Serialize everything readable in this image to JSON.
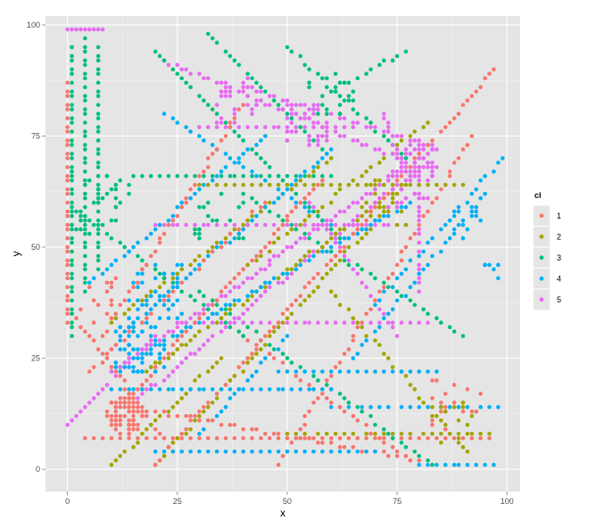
{
  "chart_data": {
    "type": "scatter",
    "title": "",
    "xlabel": "x",
    "ylabel": "y",
    "xlim": [
      -5,
      103
    ],
    "ylim": [
      -5,
      102
    ],
    "x_ticks": [
      0,
      25,
      50,
      75,
      100
    ],
    "y_ticks": [
      0,
      25,
      50,
      75,
      100
    ],
    "x_tick_labels": [
      "0",
      "25",
      "50",
      "75",
      "100"
    ],
    "y_tick_labels": [
      "0",
      "25",
      "50",
      "75",
      "100"
    ],
    "grid": true,
    "legend": {
      "title": "cl",
      "position": "right"
    },
    "panel_background": "#e5e5e5",
    "series": [
      {
        "name": "1",
        "color": "#f8766d",
        "segments": [
          {
            "from": [
              12,
              14
            ],
            "to": [
              58,
              65
            ],
            "step": 1.4
          },
          {
            "from": [
              8,
              30
            ],
            "to": [
              40,
              82
            ],
            "step": 1.6
          },
          {
            "from": [
              20,
              1
            ],
            "to": [
              97,
              90
            ],
            "step": 1.6
          },
          {
            "from": [
              0,
              87
            ],
            "to": [
              0,
              33
            ],
            "step": 1.6
          },
          {
            "from": [
              1,
              35
            ],
            "to": [
              24,
              4
            ],
            "step": 1.6
          },
          {
            "from": [
              15,
              14
            ],
            "to": [
              80,
              2
            ],
            "step": 1.7
          },
          {
            "from": [
              5,
              22
            ],
            "to": [
              45,
              60
            ],
            "step": 1.8
          },
          {
            "from": [
              48,
              1
            ],
            "to": [
              92,
              75
            ],
            "step": 1.8
          },
          {
            "from": [
              4,
              7
            ],
            "to": [
              96,
              7
            ],
            "step": 2.0
          },
          {
            "from": [
              40,
              30
            ],
            "to": [
              78,
              2
            ],
            "step": 1.8
          }
        ],
        "clusters": [
          {
            "cx": 13,
            "cy": 12,
            "n": 55,
            "spread": 4
          },
          {
            "cx": 8,
            "cy": 38,
            "n": 14,
            "spread": 5
          },
          {
            "cx": 88,
            "cy": 15,
            "n": 18,
            "spread": 6
          }
        ]
      },
      {
        "name": "2",
        "color": "#a3a500",
        "segments": [
          {
            "from": [
              18,
              22
            ],
            "to": [
              77,
              64
            ],
            "step": 1.4
          },
          {
            "from": [
              20,
              1
            ],
            "to": [
              72,
              58
            ],
            "step": 1.6
          },
          {
            "from": [
              10,
              33
            ],
            "to": [
              60,
              70
            ],
            "step": 1.7
          },
          {
            "from": [
              30,
              64
            ],
            "to": [
              90,
              64
            ],
            "step": 2.0
          },
          {
            "from": [
              10,
              1
            ],
            "to": [
              35,
              25
            ],
            "step": 1.6
          },
          {
            "from": [
              60,
              40
            ],
            "to": [
              91,
              4
            ],
            "step": 1.8
          },
          {
            "from": [
              50,
              8
            ],
            "to": [
              96,
              8
            ],
            "step": 2.2
          },
          {
            "from": [
              40,
              45
            ],
            "to": [
              82,
              78
            ],
            "step": 1.8
          }
        ],
        "clusters": [
          {
            "cx": 72,
            "cy": 60,
            "n": 25,
            "spread": 5
          },
          {
            "cx": 88,
            "cy": 10,
            "n": 14,
            "spread": 5
          }
        ]
      },
      {
        "name": "3",
        "color": "#00bf7d",
        "segments": [
          {
            "from": [
              1,
              95
            ],
            "to": [
              1,
              30
            ],
            "step": 1.6
          },
          {
            "from": [
              4,
              97
            ],
            "to": [
              4,
              40
            ],
            "step": 1.6
          },
          {
            "from": [
              7,
              95
            ],
            "to": [
              7,
              45
            ],
            "step": 1.6
          },
          {
            "from": [
              20,
              94
            ],
            "to": [
              62,
              52
            ],
            "step": 1.7
          },
          {
            "from": [
              32,
              98
            ],
            "to": [
              60,
              70
            ],
            "step": 1.7
          },
          {
            "from": [
              40,
              62
            ],
            "to": [
              90,
              30
            ],
            "step": 1.8
          },
          {
            "from": [
              2,
              58
            ],
            "to": [
              40,
              30
            ],
            "step": 1.7
          },
          {
            "from": [
              15,
              66
            ],
            "to": [
              60,
              66
            ],
            "step": 2.0
          },
          {
            "from": [
              30,
              40
            ],
            "to": [
              83,
              1
            ],
            "step": 1.8
          },
          {
            "from": [
              50,
              95
            ],
            "to": [
              77,
              70
            ],
            "step": 1.8
          },
          {
            "from": [
              58,
              84
            ],
            "to": [
              77,
              94
            ],
            "step": 1.8
          }
        ],
        "clusters": [
          {
            "cx": 7,
            "cy": 60,
            "n": 35,
            "spread": 7
          },
          {
            "cx": 60,
            "cy": 84,
            "n": 22,
            "spread": 5
          },
          {
            "cx": 35,
            "cy": 57,
            "n": 20,
            "spread": 6
          }
        ]
      },
      {
        "name": "4",
        "color": "#00b0f6",
        "segments": [
          {
            "from": [
              10,
              22
            ],
            "to": [
              78,
              60
            ],
            "step": 1.3
          },
          {
            "from": [
              12,
              30
            ],
            "to": [
              60,
              72
            ],
            "step": 1.5
          },
          {
            "from": [
              10,
              18
            ],
            "to": [
              60,
              18
            ],
            "step": 1.8
          },
          {
            "from": [
              5,
              42
            ],
            "to": [
              45,
              75
            ],
            "step": 1.6
          },
          {
            "from": [
              20,
              4
            ],
            "to": [
              70,
              4
            ],
            "step": 2.0
          },
          {
            "from": [
              48,
              22
            ],
            "to": [
              84,
              22
            ],
            "step": 2.0
          },
          {
            "from": [
              65,
              25
            ],
            "to": [
              95,
              62
            ],
            "step": 1.8
          },
          {
            "from": [
              70,
              37
            ],
            "to": [
              99,
              70
            ],
            "step": 1.8
          },
          {
            "from": [
              80,
              1
            ],
            "to": [
              97,
              1
            ],
            "step": 2.0
          },
          {
            "from": [
              60,
              14
            ],
            "to": [
              98,
              14
            ],
            "step": 2.2
          },
          {
            "from": [
              30,
              8
            ],
            "to": [
              50,
              30
            ],
            "step": 1.7
          },
          {
            "from": [
              22,
              80
            ],
            "to": [
              60,
              55
            ],
            "step": 1.8
          }
        ],
        "clusters": [
          {
            "cx": 16,
            "cy": 28,
            "n": 60,
            "spread": 6
          },
          {
            "cx": 20,
            "cy": 40,
            "n": 40,
            "spread": 6
          },
          {
            "cx": 90,
            "cy": 55,
            "n": 12,
            "spread": 4
          },
          {
            "cx": 97,
            "cy": 46,
            "n": 6,
            "spread": 3
          }
        ]
      },
      {
        "name": "5",
        "color": "#e76bf3",
        "segments": [
          {
            "from": [
              10,
              22
            ],
            "to": [
              82,
              71
            ],
            "step": 1.2
          },
          {
            "from": [
              15,
              15
            ],
            "to": [
              80,
              68
            ],
            "step": 1.4
          },
          {
            "from": [
              0,
              99
            ],
            "to": [
              8,
              99
            ],
            "step": 1.0
          },
          {
            "from": [
              22,
              92
            ],
            "to": [
              80,
              68
            ],
            "step": 1.4
          },
          {
            "from": [
              40,
              86
            ],
            "to": [
              82,
              73
            ],
            "step": 1.5
          },
          {
            "from": [
              20,
              55
            ],
            "to": [
              77,
              55
            ],
            "step": 1.8
          },
          {
            "from": [
              25,
              33
            ],
            "to": [
              82,
              33
            ],
            "step": 1.9
          },
          {
            "from": [
              0,
              10
            ],
            "to": [
              20,
              30
            ],
            "step": 1.5
          },
          {
            "from": [
              80,
              40
            ],
            "to": [
              80,
              70
            ],
            "step": 1.6
          },
          {
            "from": [
              72,
              80
            ],
            "to": [
              76,
              68
            ],
            "step": 1.2
          },
          {
            "from": [
              55,
              60
            ],
            "to": [
              75,
              30
            ],
            "step": 1.8
          },
          {
            "from": [
              30,
              77
            ],
            "to": [
              65,
              77
            ],
            "step": 1.8
          }
        ],
        "clusters": [
          {
            "cx": 80,
            "cy": 70,
            "n": 45,
            "spread": 4
          },
          {
            "cx": 55,
            "cy": 78,
            "n": 35,
            "spread": 5
          },
          {
            "cx": 38,
            "cy": 83,
            "n": 25,
            "spread": 5
          },
          {
            "cx": 78,
            "cy": 63,
            "n": 25,
            "spread": 5
          }
        ]
      }
    ]
  }
}
